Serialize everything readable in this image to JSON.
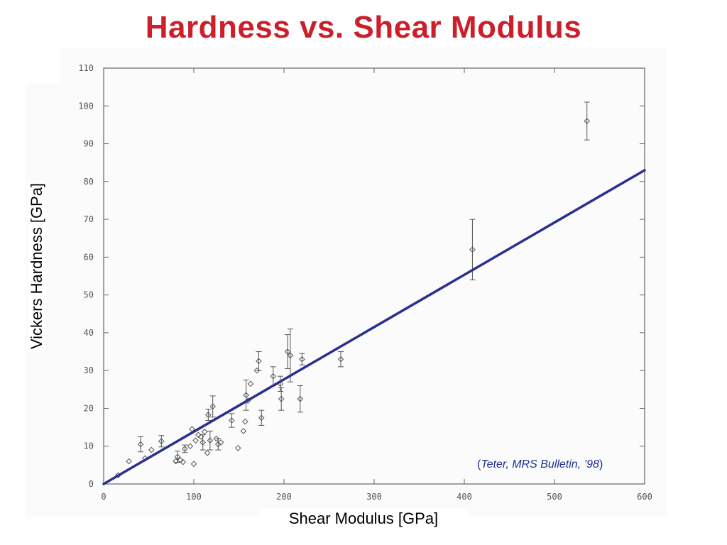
{
  "chart_data": {
    "type": "scatter",
    "title": "Hardness vs. Shear Modulus",
    "xlabel": "Shear Modulus [GPa]",
    "ylabel": "Vickers Hardness [GPa]",
    "xlim": [
      0,
      600
    ],
    "ylim": [
      0,
      110
    ],
    "x_ticks": [
      0,
      100,
      200,
      300,
      400,
      500,
      600
    ],
    "y_ticks": [
      0,
      10,
      20,
      30,
      40,
      50,
      60,
      70,
      80,
      90,
      100,
      110
    ],
    "grid": false,
    "points": [
      {
        "x": 16,
        "y": 2.3
      },
      {
        "x": 28,
        "y": 6.0
      },
      {
        "x": 41,
        "y": 10.5,
        "err": 2.0
      },
      {
        "x": 46,
        "y": 6.8
      },
      {
        "x": 53,
        "y": 9.0
      },
      {
        "x": 64,
        "y": 11.3,
        "err": 1.5
      },
      {
        "x": 80,
        "y": 6.0
      },
      {
        "x": 82,
        "y": 7.2,
        "err": 1.5
      },
      {
        "x": 85,
        "y": 6.3
      },
      {
        "x": 88,
        "y": 5.8
      },
      {
        "x": 90,
        "y": 9.3,
        "err": 1.0
      },
      {
        "x": 96,
        "y": 10.0
      },
      {
        "x": 98,
        "y": 14.5
      },
      {
        "x": 100,
        "y": 5.3
      },
      {
        "x": 102,
        "y": 11.5
      },
      {
        "x": 105,
        "y": 13.0
      },
      {
        "x": 108,
        "y": 12.5
      },
      {
        "x": 110,
        "y": 11.0,
        "err": 2.0
      },
      {
        "x": 112,
        "y": 13.8
      },
      {
        "x": 115,
        "y": 8.2
      },
      {
        "x": 116,
        "y": 18.3,
        "err": 1.5
      },
      {
        "x": 118,
        "y": 11.5,
        "err": 2.5
      },
      {
        "x": 121,
        "y": 20.5,
        "err": 2.8
      },
      {
        "x": 125,
        "y": 12.0
      },
      {
        "x": 127,
        "y": 10.5,
        "err": 1.5
      },
      {
        "x": 130,
        "y": 11.0
      },
      {
        "x": 142,
        "y": 16.8,
        "err": 1.8
      },
      {
        "x": 149,
        "y": 9.5
      },
      {
        "x": 155,
        "y": 14.0
      },
      {
        "x": 157,
        "y": 16.5
      },
      {
        "x": 158,
        "y": 23.5,
        "err": 4.0
      },
      {
        "x": 160,
        "y": 22.0
      },
      {
        "x": 163,
        "y": 26.5
      },
      {
        "x": 170,
        "y": 30.0
      },
      {
        "x": 172,
        "y": 32.5,
        "err": 2.5
      },
      {
        "x": 175,
        "y": 17.5,
        "err": 2.0
      },
      {
        "x": 188,
        "y": 28.5,
        "err": 2.5
      },
      {
        "x": 196,
        "y": 26.5,
        "err": 2.0
      },
      {
        "x": 197,
        "y": 22.5,
        "err": 3.0
      },
      {
        "x": 204,
        "y": 35.0,
        "err": 4.5
      },
      {
        "x": 207,
        "y": 34.0,
        "err": 7.0
      },
      {
        "x": 218,
        "y": 22.5,
        "err": 3.5
      },
      {
        "x": 220,
        "y": 33.0,
        "err": 1.5
      },
      {
        "x": 263,
        "y": 33.0,
        "err": 2.0
      },
      {
        "x": 409,
        "y": 62.0,
        "err": 8.0
      },
      {
        "x": 536,
        "y": 96.0,
        "err": 5.0
      }
    ],
    "fit_line": {
      "x": [
        0,
        600
      ],
      "y": [
        0,
        83
      ],
      "color": "#2b2f8f"
    },
    "annotation": {
      "open": "(",
      "text": "Teter, MRS Bulletin, ’98",
      "close": ")"
    }
  },
  "colors": {
    "title": "#cc1f2c",
    "fit_line": "#2b2f8f",
    "citation": "#1e2d8f",
    "markers": "#555555"
  }
}
